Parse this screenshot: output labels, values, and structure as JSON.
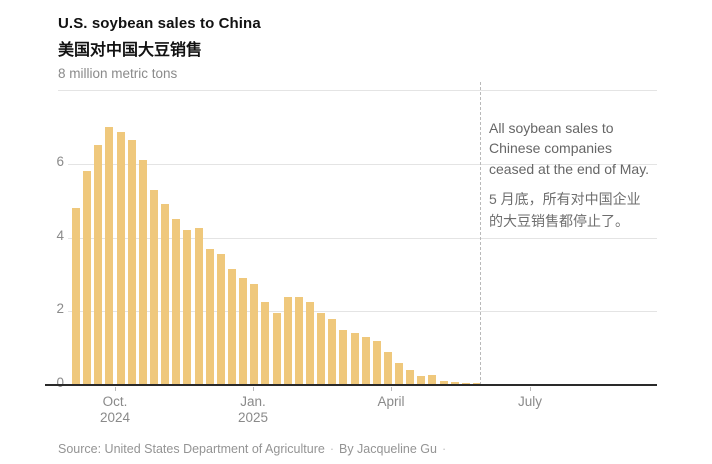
{
  "header": {
    "title_en": "U.S. soybean sales to China",
    "title_zh": "美国对中国大豆销售",
    "unit_label": "8 million metric tons"
  },
  "annotation": {
    "en": "All soybean sales to\nChinese companies\nceased at the end of May.",
    "zh": "5 月底，所有对中国企业\n的大豆销售都停止了。"
  },
  "footer": {
    "source": "Source: United States Department of Agriculture",
    "separator": "·",
    "byline": "By Jacqueline Gu",
    "trailing_separator": "·"
  },
  "colors": {
    "bar": "#efc87c",
    "gridline": "#e4e4e4",
    "axis": "#2a2a2a",
    "axis_label": "#8a8a8a",
    "annotation_text": "#666666",
    "dashed_line": "#b9b9b9",
    "title_text": "#121212",
    "footer_text": "#949494"
  },
  "chart_data": {
    "type": "bar",
    "title": "U.S. soybean sales to China",
    "title_zh": "美国对中国大豆销售",
    "ylabel": "million metric tons",
    "ylim": [
      0,
      8
    ],
    "yticks": [
      0,
      2,
      4,
      6
    ],
    "ytick_top_label": "8 million metric tons",
    "grid": "horizontal",
    "x_description": "weekly sales, September 2024 through May 2025; all sales ceased at end of May",
    "x_ticks": [
      {
        "month": "Oct.",
        "year": "2024"
      },
      {
        "month": "Jan.",
        "year": "2025"
      },
      {
        "month": "April",
        "year": ""
      },
      {
        "month": "July",
        "year": ""
      }
    ],
    "values": [
      4.8,
      5.8,
      6.5,
      7.0,
      6.85,
      6.65,
      6.1,
      5.3,
      4.9,
      4.5,
      4.2,
      4.25,
      3.7,
      3.55,
      3.15,
      2.9,
      2.75,
      2.25,
      1.95,
      2.4,
      2.4,
      2.25,
      1.95,
      1.8,
      1.5,
      1.4,
      1.3,
      1.2,
      0.9,
      0.6,
      0.4,
      0.25,
      0.27,
      0.12,
      0.07,
      0.06,
      0.05
    ],
    "annotation_en": "All soybean sales to Chinese companies ceased at the end of May.",
    "annotation_zh": "5 月底，所有对中国企业的大豆销售都停止了。"
  }
}
